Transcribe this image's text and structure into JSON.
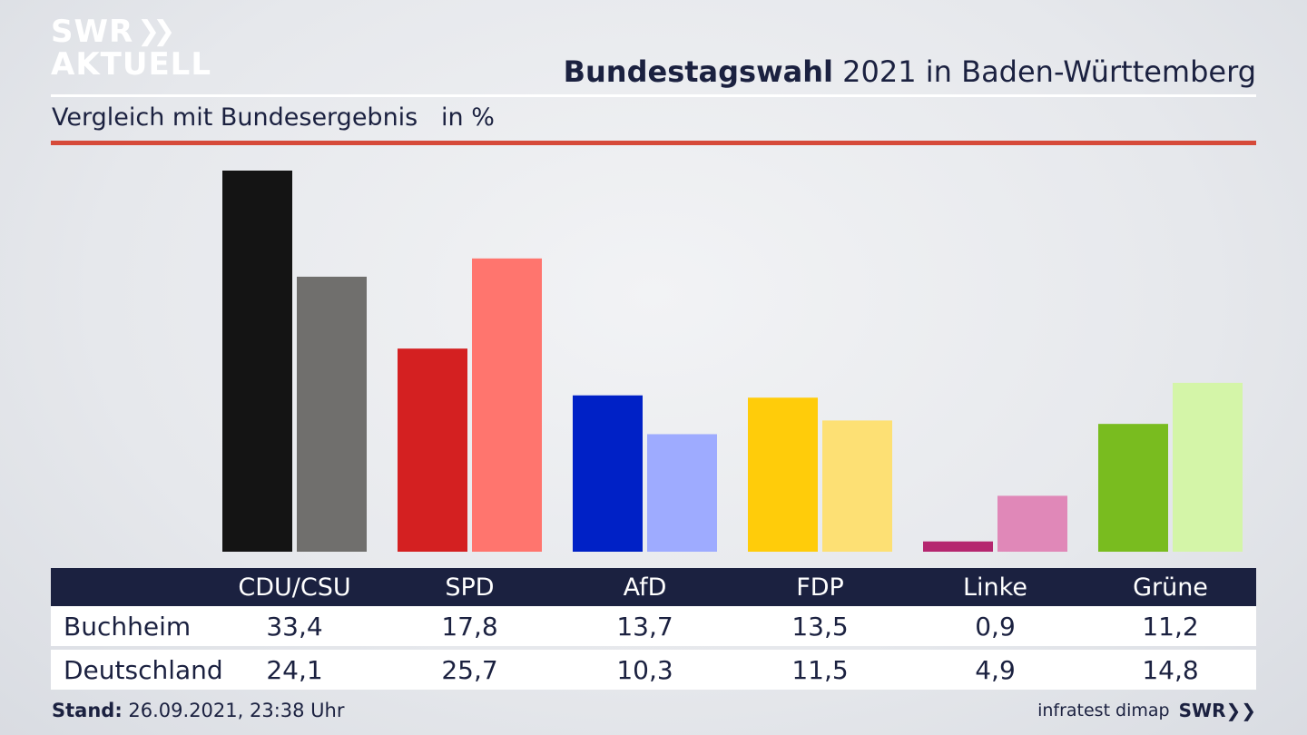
{
  "logo": {
    "line1": "SWR",
    "line2": "AKTUELL",
    "chevrons": "❯❯"
  },
  "title": {
    "bold": "Bundestagswahl",
    "rest": " 2021 in Baden-Württemberg"
  },
  "subtitle": "Vergleich mit Bundesergebnis   in %",
  "chart_data": {
    "type": "bar",
    "title": "Bundestagswahl 2021 in Baden-Württemberg",
    "subtitle": "Vergleich mit Bundesergebnis   in %",
    "categories": [
      "CDU/CSU",
      "SPD",
      "AfD",
      "FDP",
      "Linke",
      "Grüne"
    ],
    "series": [
      {
        "name": "Buchheim",
        "values": [
          33.4,
          17.8,
          13.7,
          13.5,
          0.9,
          11.2
        ],
        "colors": [
          "#141414",
          "#d42021",
          "#0021c6",
          "#ffcc0a",
          "#b5266f",
          "#79bc1f"
        ]
      },
      {
        "name": "Deutschland",
        "values": [
          24.1,
          25.7,
          10.3,
          11.5,
          4.9,
          14.8
        ],
        "colors": [
          "#706f6d",
          "#ff756e",
          "#9eabff",
          "#fde074",
          "#e088b8",
          "#d4f5a8"
        ]
      }
    ],
    "value_labels": [
      [
        "33,4",
        "17,8",
        "13,7",
        "13,5",
        "0,9",
        "11,2"
      ],
      [
        "24,1",
        "25,7",
        "10,3",
        "11,5",
        "4,9",
        "14,8"
      ]
    ],
    "ylim": [
      0,
      33.4
    ],
    "grid": false,
    "legend": "table-below"
  },
  "footer": {
    "stand_label": "Stand:",
    "stand_value": " 26.09.2021, 23:38 Uhr",
    "source": "infratest dimap",
    "brand": "SWR",
    "brand_chevrons": "❯❯"
  }
}
